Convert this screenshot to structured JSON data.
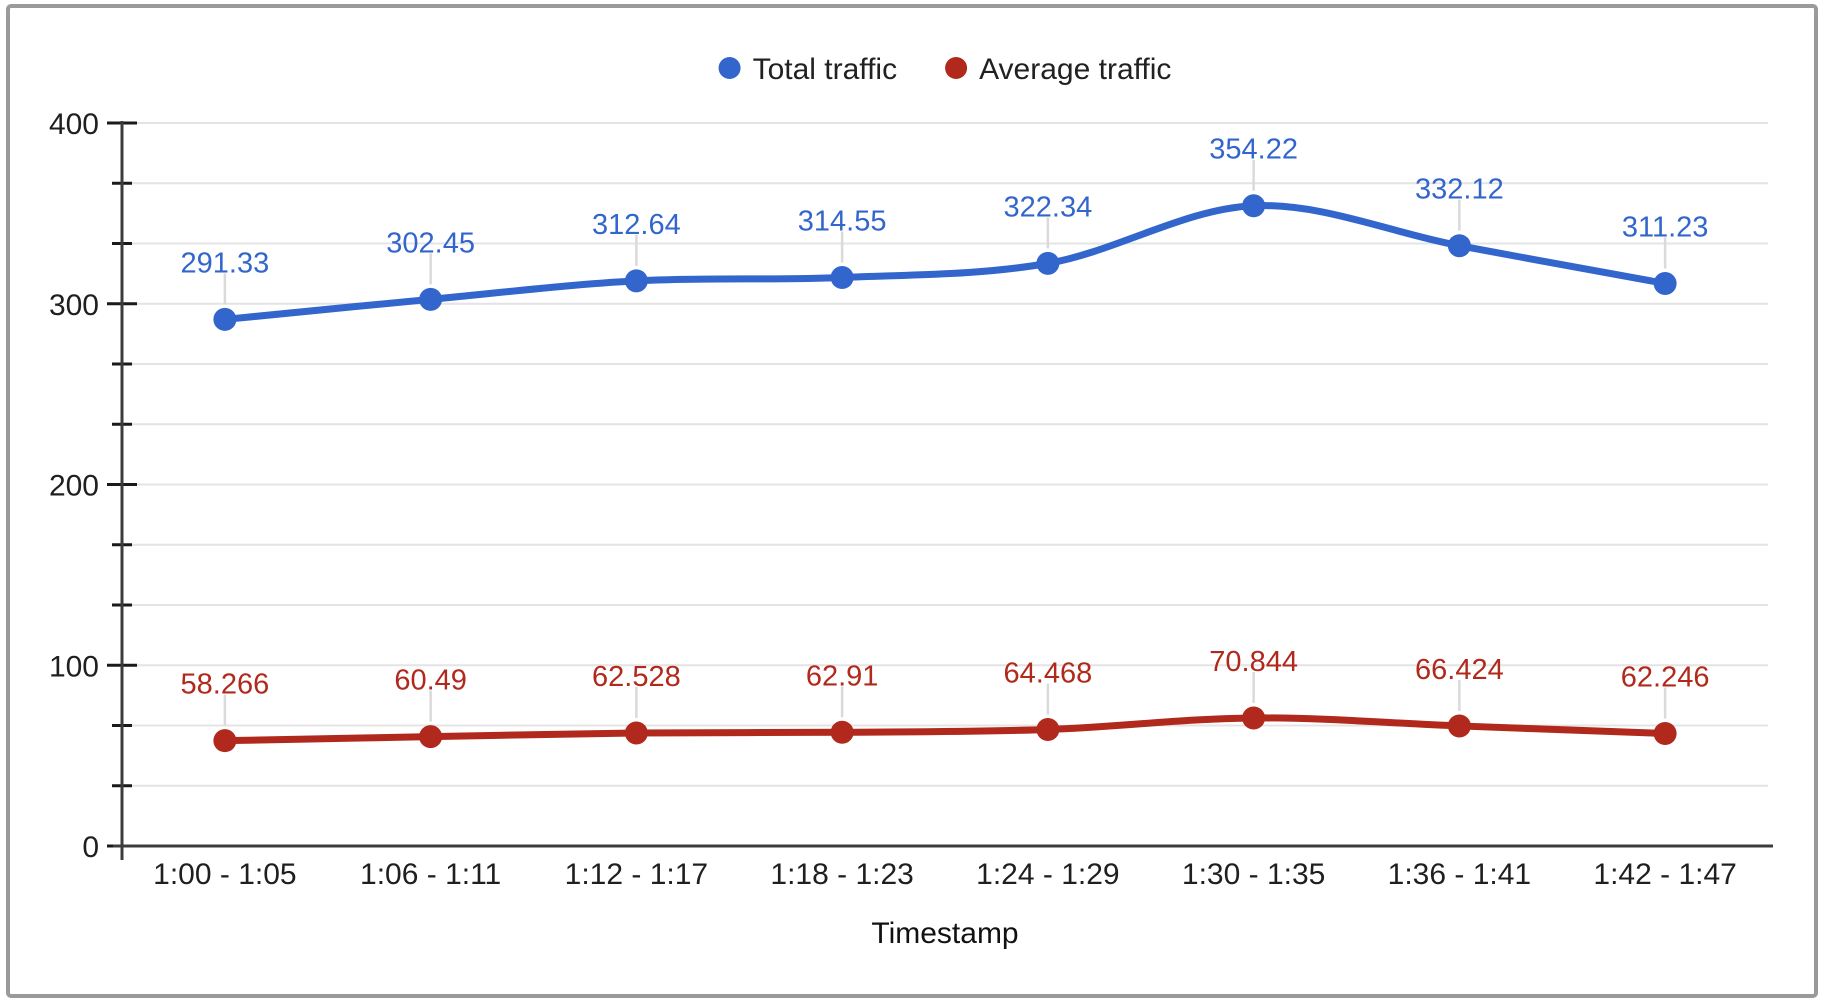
{
  "frame": {
    "background": "#ffffff",
    "border_color": "#9a9a9a"
  },
  "chart_data": {
    "type": "line",
    "smooth": true,
    "point_labels": true,
    "title": "",
    "xlabel": "Timestamp",
    "ylabel": "",
    "categories": [
      "1:00 - 1:05",
      "1:06 - 1:11",
      "1:12 - 1:17",
      "1:18 - 1:23",
      "1:24 - 1:29",
      "1:30 - 1:35",
      "1:36 - 1:41",
      "1:42 - 1:47"
    ],
    "series": [
      {
        "name": "Total traffic",
        "color": "#3366CC",
        "values": [
          291.33,
          302.45,
          312.64,
          314.55,
          322.34,
          354.22,
          332.12,
          311.23
        ]
      },
      {
        "name": "Average traffic",
        "color": "#B0291C",
        "values": [
          58.266,
          60.49,
          62.528,
          62.91,
          64.468,
          70.844,
          66.424,
          62.246
        ]
      }
    ],
    "y_axis": {
      "min": 0,
      "max": 400,
      "major_step": 100,
      "minor_divisions_per_major": 3,
      "tick_labels": [
        "0",
        "100",
        "200",
        "300",
        "400"
      ]
    },
    "legend": {
      "position": "top"
    },
    "grid": {
      "show_horizontal": true,
      "show_vertical": false
    },
    "style_colors": {
      "gridline": "#e4e4e4",
      "axis_line": "#3c3c3c",
      "tick_mark": "#1a1a1a",
      "axis_text": "#1f1f1f",
      "label_leader": "#dadada"
    }
  }
}
